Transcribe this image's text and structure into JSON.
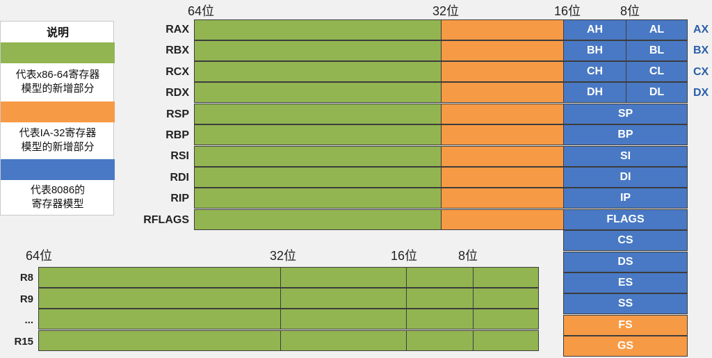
{
  "top_header": {
    "b64": "64位",
    "b32": "32位",
    "b16": "16位",
    "b8": "8位"
  },
  "legend": {
    "title": "说明",
    "green_line1": "代表x86-64寄存器",
    "green_line2": "模型的新增部分",
    "orange_line1": "代表IA-32寄存器",
    "orange_line2": "模型的新增部分",
    "blue_line1": "代表8086的",
    "blue_line2": "寄存器模型",
    "colors": {
      "green": "#92b551",
      "orange": "#f79a45",
      "blue": "#4979c4"
    }
  },
  "registers": [
    {
      "name": "RAX",
      "high": "AH",
      "low": "AL",
      "word": "AX"
    },
    {
      "name": "RBX",
      "high": "BH",
      "low": "BL",
      "word": "BX"
    },
    {
      "name": "RCX",
      "high": "CH",
      "low": "CL",
      "word": "CX"
    },
    {
      "name": "RDX",
      "high": "DH",
      "low": "DL",
      "word": "DX"
    },
    {
      "name": "RSP",
      "seg16": "SP"
    },
    {
      "name": "RBP",
      "seg16": "BP"
    },
    {
      "name": "RSI",
      "seg16": "SI"
    },
    {
      "name": "RDI",
      "seg16": "DI"
    },
    {
      "name": "RIP",
      "seg16": "IP"
    },
    {
      "name": "RFLAGS",
      "seg16": "FLAGS"
    }
  ],
  "segment_registers": [
    {
      "name": "CS",
      "color": "#4979c4"
    },
    {
      "name": "DS",
      "color": "#4979c4"
    },
    {
      "name": "ES",
      "color": "#4979c4"
    },
    {
      "name": "SS",
      "color": "#4979c4"
    },
    {
      "name": "FS",
      "color": "#f79a45"
    },
    {
      "name": "GS",
      "color": "#f79a45"
    }
  ],
  "bottom_header": {
    "b64": "64位",
    "b32": "32位",
    "b16": "16位",
    "b8": "8位"
  },
  "extended_registers": [
    "R8",
    "R9",
    "...",
    "R15"
  ]
}
